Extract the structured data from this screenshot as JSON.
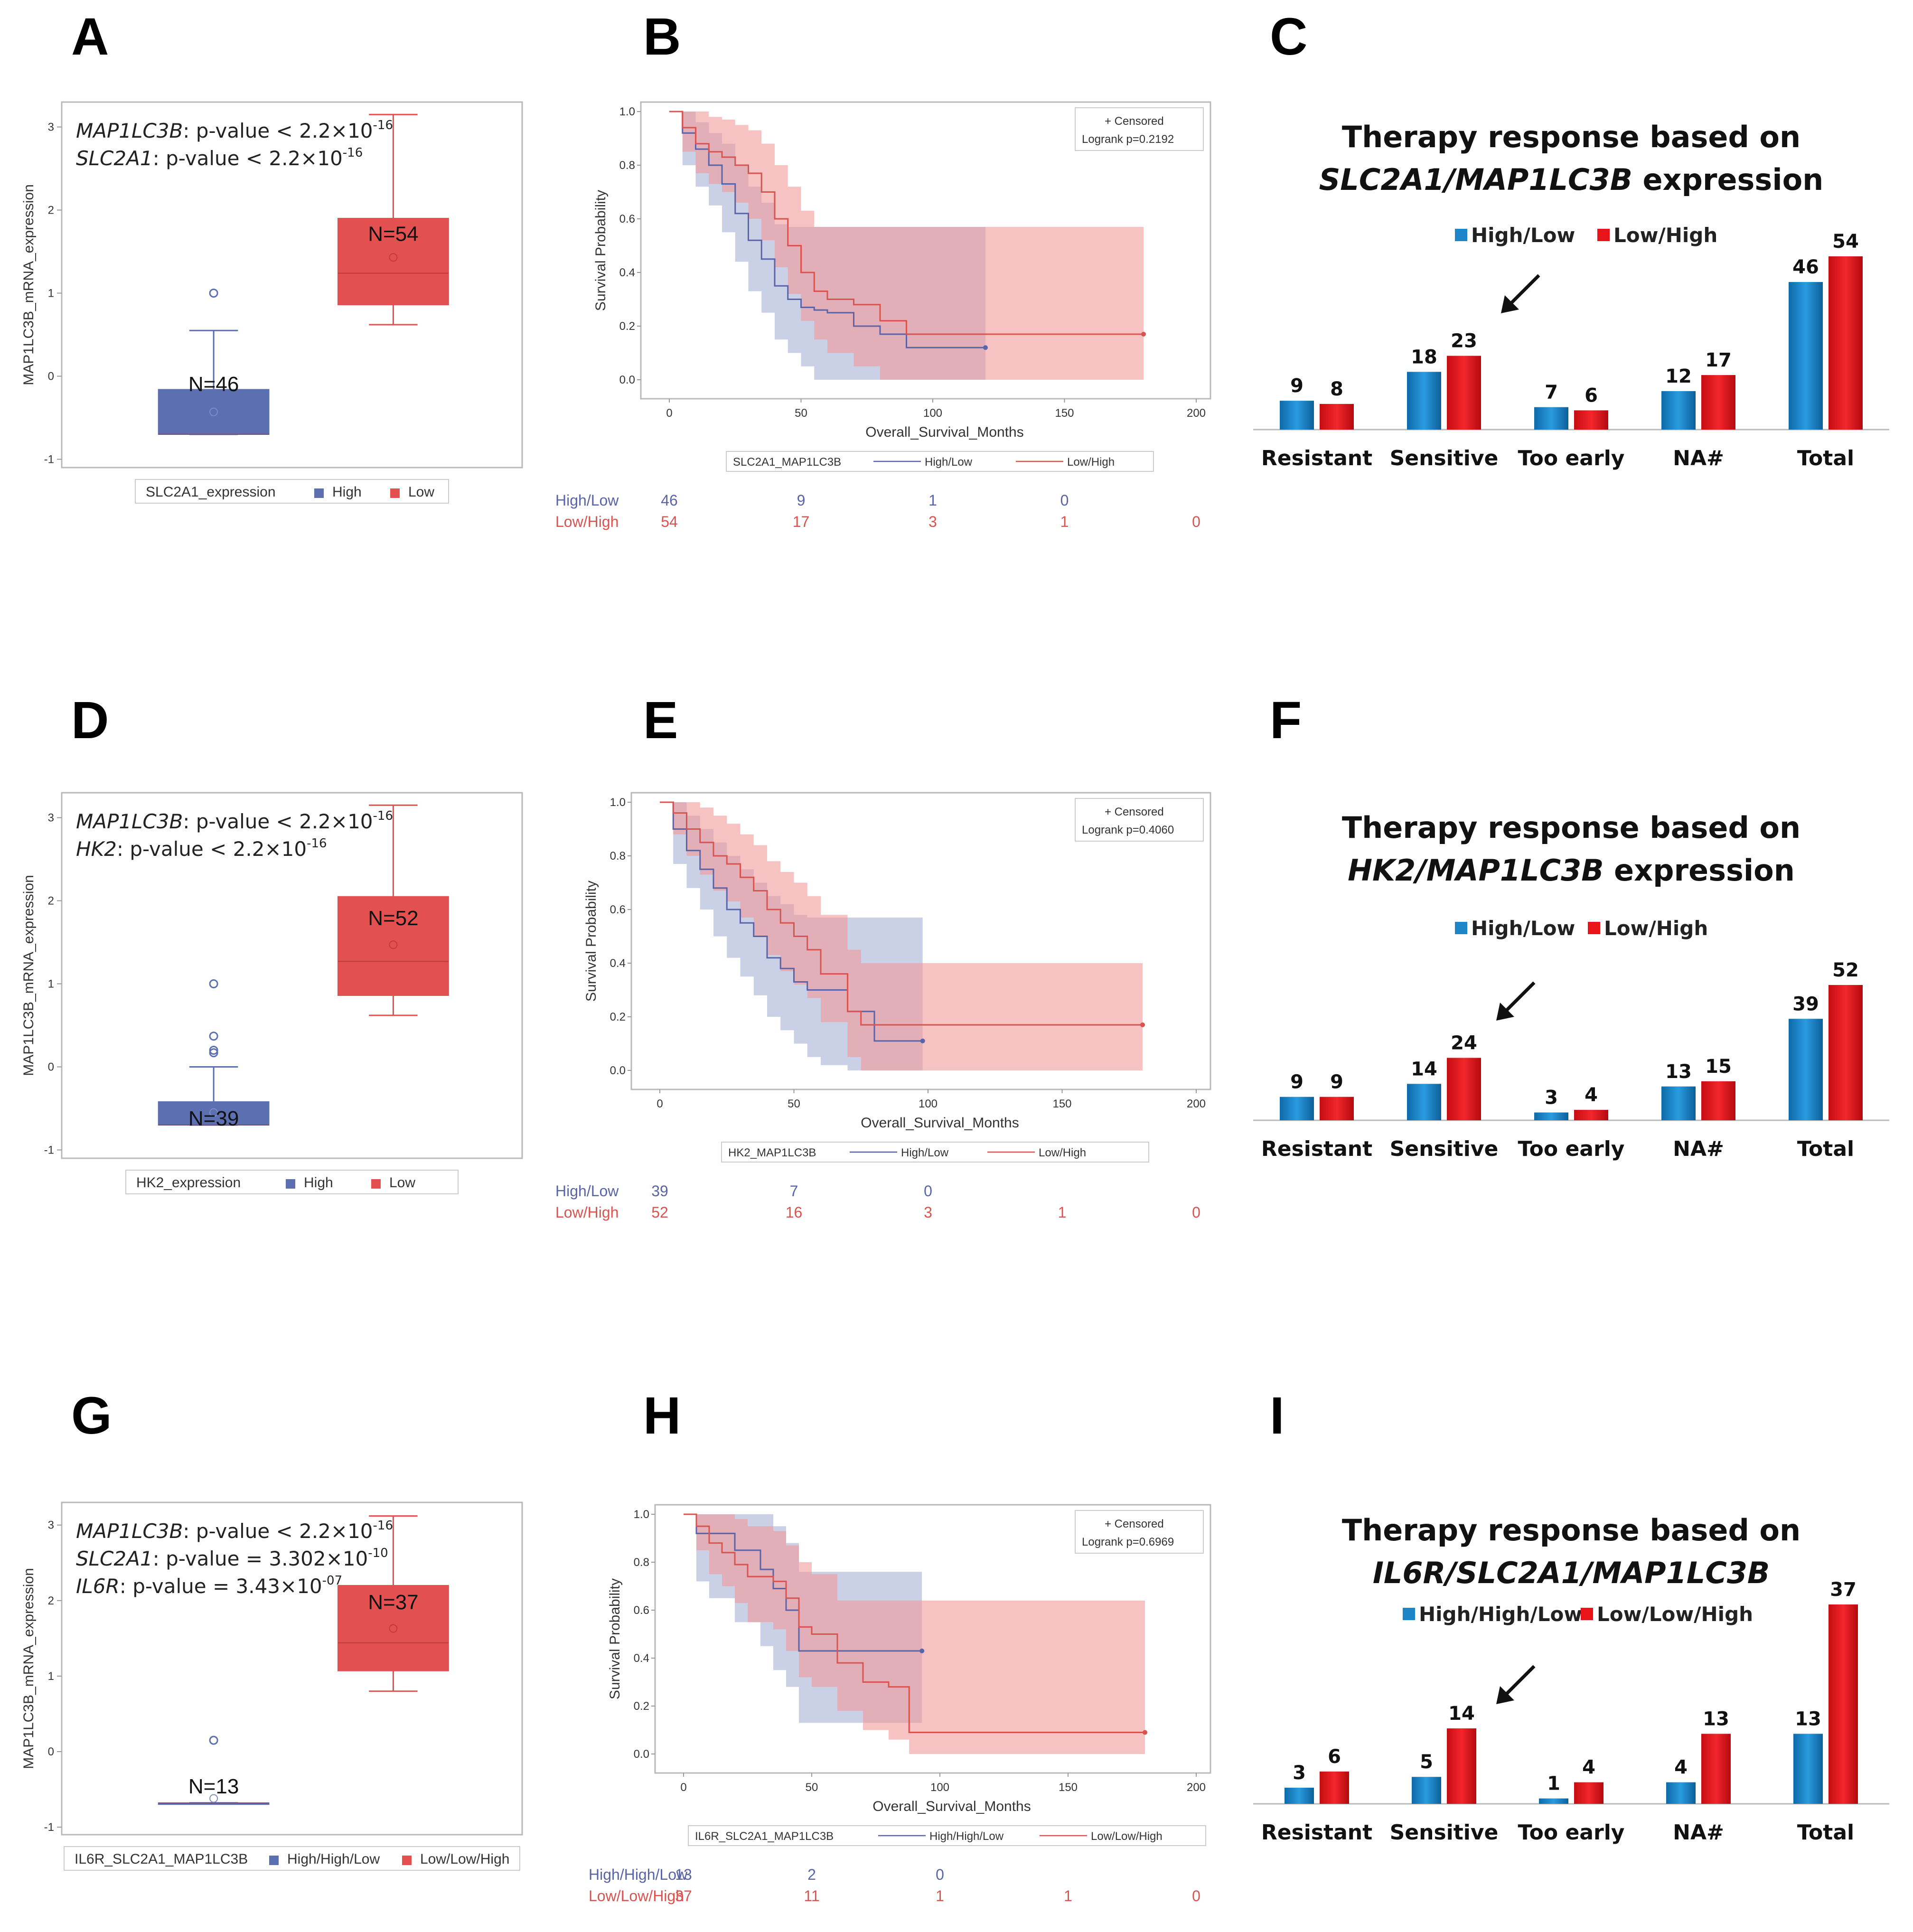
{
  "colors": {
    "blue": "#5b6fb1",
    "red": "#e2514f",
    "bar_blue": "#1e86c8",
    "bar_red": "#e8141a",
    "km_blue": "#5a64a8",
    "km_red": "#d9534f",
    "band_blue": "#a6b0d4",
    "band_red": "#f29a9a"
  },
  "chart_data": [
    {
      "panel": "A",
      "type": "box",
      "ylabel": "MAP1LC3B_mRNA_expression",
      "ylim": [
        -1.1,
        3.3
      ],
      "yticks": [
        "-1",
        "0",
        "1",
        "2",
        "3"
      ],
      "annotations": [
        {
          "gene": "MAP1LC3B",
          "text": ": p-value < 2.2×10",
          "exp": "-16"
        },
        {
          "gene": "SLC2A1",
          "text": ": p-value < 2.2×10",
          "exp": "-16"
        }
      ],
      "legend_title": "SLC2A1_expression",
      "legend_items": [
        "High",
        "Low"
      ],
      "groups": [
        {
          "name": "High",
          "n_label": "N=46",
          "q1": -0.7,
          "median": -0.7,
          "q3": -0.16,
          "whisker_low": -0.7,
          "whisker_high": 0.55,
          "mean": -0.43,
          "outliers": [
            1.0
          ]
        },
        {
          "name": "Low",
          "n_label": "N=54",
          "q1": 0.86,
          "median": 1.24,
          "q3": 1.9,
          "whisker_low": 0.62,
          "whisker_high": 3.15,
          "mean": 1.43,
          "outliers": []
        }
      ]
    },
    {
      "panel": "B",
      "type": "line",
      "xlabel": "Overall_Survival_Months",
      "ylabel": "Survival Probability",
      "xlim": [
        0,
        200
      ],
      "ylim": [
        0,
        1
      ],
      "xticks": [
        "0",
        "50",
        "100",
        "150",
        "200"
      ],
      "yticks": [
        "0.0",
        "0.2",
        "0.4",
        "0.6",
        "0.8",
        "1.0"
      ],
      "censored_label": "+ Censored",
      "logrank": "Logrank p=0.2192",
      "legend_title": "SLC2A1_MAP1LC3B",
      "series": [
        {
          "name": "High/Low",
          "at_risk": [
            "46",
            "9",
            "1",
            "0"
          ],
          "x": [
            0,
            5,
            10,
            15,
            20,
            25,
            30,
            35,
            40,
            45,
            50,
            55,
            60,
            70,
            80,
            90,
            120
          ],
          "y": [
            1.0,
            0.92,
            0.86,
            0.8,
            0.73,
            0.62,
            0.52,
            0.45,
            0.35,
            0.3,
            0.27,
            0.26,
            0.25,
            0.2,
            0.17,
            0.12,
            0.12
          ],
          "upper": [
            1.0,
            1.0,
            0.96,
            0.92,
            0.88,
            0.8,
            0.72,
            0.66,
            0.58,
            0.57,
            0.57,
            0.57,
            0.57,
            0.57,
            0.57,
            0.57,
            0.57
          ],
          "lower": [
            1.0,
            0.8,
            0.72,
            0.65,
            0.55,
            0.44,
            0.33,
            0.25,
            0.15,
            0.1,
            0.05,
            0.0,
            0.0,
            0.0,
            0.0,
            0.0,
            0.0
          ]
        },
        {
          "name": "Low/High",
          "at_risk": [
            "54",
            "17",
            "3",
            "1",
            "0"
          ],
          "x": [
            0,
            5,
            10,
            15,
            20,
            25,
            30,
            35,
            40,
            45,
            50,
            55,
            60,
            70,
            80,
            90,
            180
          ],
          "y": [
            1.0,
            0.94,
            0.88,
            0.85,
            0.83,
            0.8,
            0.77,
            0.7,
            0.6,
            0.5,
            0.4,
            0.33,
            0.3,
            0.28,
            0.22,
            0.17,
            0.17
          ],
          "upper": [
            1.0,
            1.0,
            1.0,
            0.98,
            0.97,
            0.95,
            0.93,
            0.88,
            0.8,
            0.72,
            0.63,
            0.57,
            0.57,
            0.57,
            0.57,
            0.57,
            0.57
          ],
          "lower": [
            1.0,
            0.85,
            0.77,
            0.73,
            0.7,
            0.66,
            0.6,
            0.52,
            0.42,
            0.32,
            0.22,
            0.15,
            0.1,
            0.05,
            0.0,
            0.0,
            0.0
          ]
        }
      ]
    },
    {
      "panel": "C",
      "type": "bar",
      "title_line1": "Therapy response based on",
      "title_line2_italic": "SLC2A1/MAP1LC3B",
      "title_line2_rest": " expression",
      "categories": [
        "Resistant",
        "Sensitive",
        "Too early",
        "NA#",
        "Total"
      ],
      "ylim": [
        0,
        54
      ],
      "arrow_category": 1,
      "series": [
        {
          "name": "High/Low",
          "values": [
            9,
            18,
            7,
            12,
            46
          ]
        },
        {
          "name": "Low/High",
          "values": [
            8,
            23,
            6,
            17,
            54
          ]
        }
      ]
    },
    {
      "panel": "D",
      "type": "box",
      "ylabel": "MAP1LC3B_mRNA_expression",
      "ylim": [
        -1.1,
        3.3
      ],
      "yticks": [
        "-1",
        "0",
        "1",
        "2",
        "3"
      ],
      "annotations": [
        {
          "gene": "MAP1LC3B",
          "text": ": p-value < 2.2×10",
          "exp": "-16"
        },
        {
          "gene": "HK2",
          "text": ": p-value < 2.2×10",
          "exp": "-16"
        }
      ],
      "legend_title": "HK2_expression",
      "legend_items": [
        "High",
        "Low"
      ],
      "groups": [
        {
          "name": "High",
          "n_label": "N=39",
          "q1": -0.7,
          "median": -0.7,
          "q3": -0.42,
          "whisker_low": -0.7,
          "whisker_high": 0.0,
          "mean": -0.55,
          "outliers": [
            0.17,
            0.2,
            0.37,
            1.0
          ]
        },
        {
          "name": "Low",
          "n_label": "N=52",
          "q1": 0.86,
          "median": 1.27,
          "q3": 2.05,
          "whisker_low": 0.62,
          "whisker_high": 3.15,
          "mean": 1.47,
          "outliers": []
        }
      ]
    },
    {
      "panel": "E",
      "type": "line",
      "xlabel": "Overall_Survival_Months",
      "ylabel": "Survival Probability",
      "xlim": [
        0,
        200
      ],
      "ylim": [
        0,
        1
      ],
      "xticks": [
        "0",
        "50",
        "100",
        "150",
        "200"
      ],
      "yticks": [
        "0.0",
        "0.2",
        "0.4",
        "0.6",
        "0.8",
        "1.0"
      ],
      "censored_label": "+ Censored",
      "logrank": "Logrank p=0.4060",
      "legend_title": "HK2_MAP1LC3B",
      "series": [
        {
          "name": "High/Low",
          "at_risk": [
            "39",
            "7",
            "0"
          ],
          "x": [
            0,
            5,
            10,
            15,
            20,
            25,
            30,
            35,
            40,
            45,
            50,
            55,
            60,
            70,
            80,
            98
          ],
          "y": [
            1.0,
            0.9,
            0.82,
            0.75,
            0.68,
            0.6,
            0.55,
            0.5,
            0.42,
            0.38,
            0.33,
            0.3,
            0.3,
            0.22,
            0.11,
            0.11
          ],
          "upper": [
            1.0,
            1.0,
            0.95,
            0.9,
            0.85,
            0.8,
            0.75,
            0.7,
            0.65,
            0.62,
            0.58,
            0.57,
            0.57,
            0.57,
            0.57,
            0.57
          ],
          "lower": [
            1.0,
            0.77,
            0.68,
            0.6,
            0.5,
            0.42,
            0.35,
            0.28,
            0.2,
            0.15,
            0.1,
            0.05,
            0.02,
            0.0,
            0.0,
            0.0
          ]
        },
        {
          "name": "Low/High",
          "at_risk": [
            "52",
            "16",
            "3",
            "1",
            "0"
          ],
          "x": [
            0,
            5,
            10,
            15,
            20,
            25,
            30,
            35,
            40,
            45,
            50,
            55,
            60,
            70,
            75,
            180
          ],
          "y": [
            1.0,
            0.96,
            0.9,
            0.85,
            0.8,
            0.77,
            0.72,
            0.67,
            0.6,
            0.55,
            0.5,
            0.45,
            0.36,
            0.22,
            0.17,
            0.17
          ],
          "upper": [
            1.0,
            1.0,
            1.0,
            0.98,
            0.95,
            0.92,
            0.88,
            0.84,
            0.78,
            0.74,
            0.7,
            0.65,
            0.58,
            0.45,
            0.4,
            0.4
          ],
          "lower": [
            1.0,
            0.88,
            0.8,
            0.73,
            0.67,
            0.63,
            0.57,
            0.5,
            0.43,
            0.37,
            0.32,
            0.27,
            0.18,
            0.05,
            0.0,
            0.0
          ]
        }
      ]
    },
    {
      "panel": "F",
      "type": "bar",
      "title_line1": "Therapy response based on",
      "title_line2_italic": "HK2/MAP1LC3B",
      "title_line2_rest": " expression",
      "categories": [
        "Resistant",
        "Sensitive",
        "Too early",
        "NA#",
        "Total"
      ],
      "ylim": [
        0,
        52
      ],
      "arrow_category": 1,
      "series": [
        {
          "name": "High/Low",
          "values": [
            9,
            14,
            3,
            13,
            39
          ]
        },
        {
          "name": "Low/High",
          "values": [
            9,
            24,
            4,
            15,
            52
          ]
        }
      ]
    },
    {
      "panel": "G",
      "type": "box",
      "ylabel": "MAP1LC3B_mRNA_expression",
      "ylim": [
        -1.1,
        3.3
      ],
      "yticks": [
        "-1",
        "0",
        "1",
        "2",
        "3"
      ],
      "annotations": [
        {
          "gene": "MAP1LC3B",
          "text": ": p-value < 2.2×10",
          "exp": "-16"
        },
        {
          "gene": "SLC2A1",
          "text": ": p-value = 3.302×10",
          "exp": "-10"
        },
        {
          "gene": "IL6R",
          "text": ": p-value = 3.43×10",
          "exp": "-07"
        }
      ],
      "legend_title": "IL6R_SLC2A1_MAP1LC3B",
      "legend_items": [
        "High/High/Low",
        "Low/Low/High"
      ],
      "groups": [
        {
          "name": "High/High/Low",
          "n_label": "N=13",
          "q1": -0.68,
          "median": -0.68,
          "q3": -0.68,
          "whisker_low": -0.68,
          "whisker_high": -0.68,
          "mean": -0.62,
          "outliers": [
            0.15
          ]
        },
        {
          "name": "Low/Low/High",
          "n_label": "N=37",
          "q1": 1.07,
          "median": 1.44,
          "q3": 2.2,
          "whisker_low": 0.8,
          "whisker_high": 3.12,
          "mean": 1.63,
          "outliers": []
        }
      ]
    },
    {
      "panel": "H",
      "type": "line",
      "xlabel": "Overall_Survival_Months",
      "ylabel": "Survival Probability",
      "xlim": [
        0,
        200
      ],
      "ylim": [
        0,
        1
      ],
      "xticks": [
        "0",
        "50",
        "100",
        "150",
        "200"
      ],
      "yticks": [
        "0.0",
        "0.2",
        "0.4",
        "0.6",
        "0.8",
        "1.0"
      ],
      "censored_label": "+ Censored",
      "logrank": "Logrank p=0.6969",
      "legend_title": "IL6R_SLC2A1_MAP1LC3B",
      "series": [
        {
          "name": "High/High/Low",
          "at_risk": [
            "13",
            "2",
            "0"
          ],
          "x": [
            0,
            5,
            10,
            20,
            30,
            35,
            40,
            45,
            50,
            60,
            70,
            80,
            93
          ],
          "y": [
            1.0,
            0.92,
            0.92,
            0.85,
            0.77,
            0.69,
            0.6,
            0.43,
            0.43,
            0.43,
            0.43,
            0.43,
            0.43
          ],
          "upper": [
            1.0,
            1.0,
            1.0,
            1.0,
            1.0,
            0.95,
            0.88,
            0.76,
            0.76,
            0.76,
            0.76,
            0.76,
            0.76
          ],
          "lower": [
            1.0,
            0.72,
            0.65,
            0.55,
            0.45,
            0.35,
            0.28,
            0.13,
            0.13,
            0.13,
            0.13,
            0.13,
            0.13
          ]
        },
        {
          "name": "Low/Low/High",
          "at_risk": [
            "37",
            "11",
            "1",
            "1",
            "0"
          ],
          "x": [
            0,
            5,
            10,
            15,
            20,
            25,
            30,
            35,
            40,
            45,
            50,
            60,
            70,
            80,
            88,
            180
          ],
          "y": [
            1.0,
            0.95,
            0.88,
            0.84,
            0.79,
            0.74,
            0.74,
            0.72,
            0.65,
            0.53,
            0.5,
            0.38,
            0.3,
            0.28,
            0.09,
            0.09
          ],
          "upper": [
            1.0,
            1.0,
            1.0,
            1.0,
            0.98,
            0.95,
            0.95,
            0.93,
            0.87,
            0.8,
            0.75,
            0.64,
            0.64,
            0.64,
            0.64,
            0.64
          ],
          "lower": [
            1.0,
            0.85,
            0.75,
            0.7,
            0.63,
            0.55,
            0.55,
            0.52,
            0.43,
            0.32,
            0.28,
            0.18,
            0.1,
            0.06,
            0.0,
            0.0
          ]
        }
      ]
    },
    {
      "panel": "I",
      "type": "bar",
      "title_line1": "Therapy response based on",
      "title_line2_italic": "IL6R/SLC2A1/MAP1LC3B",
      "title_line2_rest": "",
      "categories": [
        "Resistant",
        "Sensitive",
        "Too early",
        "NA#",
        "Total"
      ],
      "ylim": [
        0,
        37
      ],
      "arrow_category": 1,
      "series": [
        {
          "name": "High/High/Low",
          "values": [
            3,
            5,
            1,
            4,
            13
          ]
        },
        {
          "name": "Low/Low/High",
          "values": [
            6,
            14,
            4,
            13,
            37
          ]
        }
      ]
    }
  ]
}
